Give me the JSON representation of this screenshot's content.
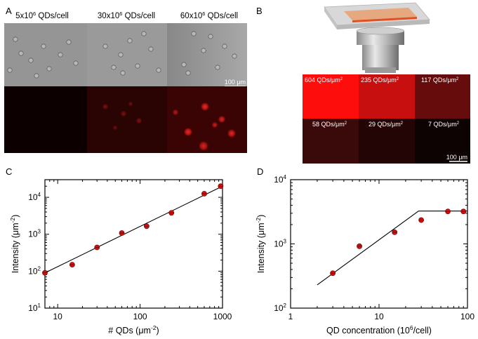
{
  "panels": {
    "A": {
      "letter": "A",
      "column_titles": [
        {
          "base": "5x10",
          "exp": "6",
          "rest": " QDs/cell"
        },
        {
          "base": "30x10",
          "exp": "6",
          "rest": " QDs/cell"
        },
        {
          "base": "60x10",
          "exp": "6",
          "rest": " QDs/cell"
        }
      ],
      "scale_bar": "100 μm",
      "fluorescence_colors": [
        "#0d0000",
        "#2a0303",
        "#3a0404"
      ]
    },
    "B": {
      "letter": "B",
      "tiles": [
        {
          "value": "604",
          "unit_base": " QDs/μm",
          "exp": "2",
          "color": "#fe0d0d"
        },
        {
          "value": "235",
          "unit_base": " QDs/μm",
          "exp": "2",
          "color": "#c80f0f"
        },
        {
          "value": "117",
          "unit_base": " QDs/μm",
          "exp": "2",
          "color": "#660c0c"
        },
        {
          "value": "58",
          "unit_base": " QDs/μm",
          "exp": "2",
          "color": "#3a0909"
        },
        {
          "value": "29",
          "unit_base": " QDs/μm",
          "exp": "2",
          "color": "#240505"
        },
        {
          "value": "7",
          "unit_base": " QDs/μm",
          "exp": "2",
          "color": "#0e0303"
        }
      ],
      "scale_bar": "100 μm"
    }
  },
  "chart_data": [
    {
      "panel": "C",
      "type": "scatter",
      "xscale": "log",
      "yscale": "log",
      "xlabel": {
        "base": "# QDs (μm",
        "exp": "-2",
        "rest": ")"
      },
      "ylabel": {
        "base": "Intensity (μm",
        "exp": "-2",
        "rest": ")"
      },
      "xlim": [
        7,
        1000
      ],
      "ylim": [
        10,
        30000
      ],
      "x_ticks": [
        {
          "v": 10,
          "label": "10"
        },
        {
          "v": 100,
          "label": "100"
        },
        {
          "v": 1000,
          "label": "1000"
        }
      ],
      "y_ticks": [
        {
          "v": 10,
          "base": "10",
          "exp": "1"
        },
        {
          "v": 100,
          "base": "10",
          "exp": "2"
        },
        {
          "v": 1000,
          "base": "10",
          "exp": "3"
        },
        {
          "v": 10000,
          "base": "10",
          "exp": "4"
        }
      ],
      "points": [
        {
          "x": 7,
          "y": 90
        },
        {
          "x": 15,
          "y": 150
        },
        {
          "x": 30,
          "y": 440
        },
        {
          "x": 60,
          "y": 1080
        },
        {
          "x": 120,
          "y": 1650
        },
        {
          "x": 240,
          "y": 3800
        },
        {
          "x": 600,
          "y": 12500
        },
        {
          "x": 950,
          "y": 20000
        }
      ],
      "fit_line": [
        {
          "x": 7,
          "y": 90
        },
        {
          "x": 1000,
          "y": 20000
        }
      ],
      "marker_color": "#cc1111"
    },
    {
      "panel": "D",
      "type": "scatter",
      "xscale": "log",
      "yscale": "log",
      "xlabel": {
        "base": "QD concentration (10",
        "exp": "6",
        "rest": "/cell)"
      },
      "ylabel": {
        "base": "Intensity (μm",
        "exp": "-2",
        "rest": ")"
      },
      "xlim": [
        1,
        100
      ],
      "ylim": [
        100,
        10000
      ],
      "x_ticks": [
        {
          "v": 1,
          "label": "1"
        },
        {
          "v": 10,
          "label": "10"
        },
        {
          "v": 100,
          "label": "100"
        }
      ],
      "y_ticks": [
        {
          "v": 100,
          "base": "10",
          "exp": "2"
        },
        {
          "v": 1000,
          "base": "10",
          "exp": "3"
        },
        {
          "v": 10000,
          "base": "10",
          "exp": "4"
        }
      ],
      "points": [
        {
          "x": 3,
          "y": 350
        },
        {
          "x": 6,
          "y": 920
        },
        {
          "x": 15,
          "y": 1520
        },
        {
          "x": 30,
          "y": 2350
        },
        {
          "x": 60,
          "y": 3200
        },
        {
          "x": 90,
          "y": 3200
        }
      ],
      "fit_line": [
        {
          "x": 2,
          "y": 230
        },
        {
          "x": 28,
          "y": 3250
        },
        {
          "x": 100,
          "y": 3250
        }
      ],
      "marker_color": "#cc1111"
    }
  ]
}
